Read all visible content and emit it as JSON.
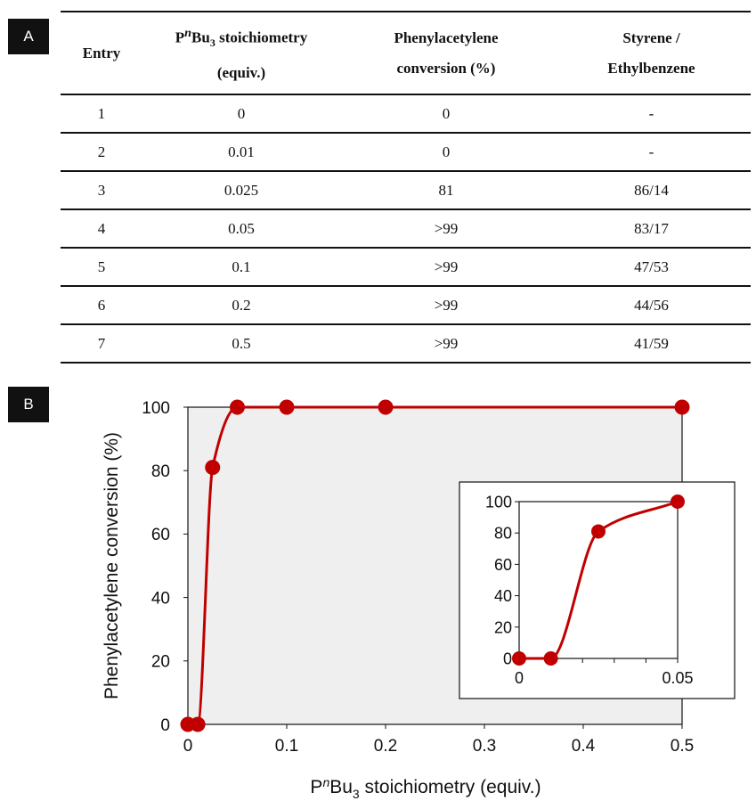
{
  "panels": {
    "a": "A",
    "b": "B"
  },
  "table": {
    "header": {
      "entry": "Entry",
      "stoich_pre": "P",
      "stoich_italic": "n",
      "stoich_mid": "Bu",
      "stoich_sub": "3",
      "stoich_post": " stoichiometry",
      "stoich_line2": "(equiv.)",
      "conv_line1": "Phenylacetylene",
      "conv_line2": "conversion (%)",
      "ratio_line1": "Styrene /",
      "ratio_line2": "Ethylbenzene"
    },
    "rows": [
      {
        "entry": "1",
        "stoich": "0",
        "conversion": "0",
        "ratio": "-"
      },
      {
        "entry": "2",
        "stoich": "0.01",
        "conversion": "0",
        "ratio": "-"
      },
      {
        "entry": "3",
        "stoich": "0.025",
        "conversion": "81",
        "ratio": "86/14"
      },
      {
        "entry": "4",
        "stoich": "0.05",
        "conversion": ">99",
        "ratio": "83/17"
      },
      {
        "entry": "5",
        "stoich": "0.1",
        "conversion": ">99",
        "ratio": "47/53"
      },
      {
        "entry": "6",
        "stoich": "0.2",
        "conversion": ">99",
        "ratio": "44/56"
      },
      {
        "entry": "7",
        "stoich": "0.5",
        "conversion": ">99",
        "ratio": "41/59"
      }
    ]
  },
  "chart_data": [
    {
      "type": "scatter",
      "x": [
        0,
        0.01,
        0.025,
        0.05,
        0.1,
        0.2,
        0.5
      ],
      "y": [
        0,
        0,
        81,
        100,
        100,
        100,
        100
      ],
      "xlim": [
        0,
        0.5
      ],
      "ylim": [
        0,
        100
      ],
      "xticks": [
        "0",
        "0.1",
        "0.2",
        "0.3",
        "0.4",
        "0.5"
      ],
      "yticks": [
        "0",
        "20",
        "40",
        "60",
        "80",
        "100"
      ],
      "xlabel": {
        "pre": "P",
        "italic": "n",
        "mid": "Bu",
        "sub": "3",
        "post": " stoichiometry (equiv.)"
      },
      "ylabel": "Phenylacetylene  conversion (%)",
      "grid": false,
      "marker_color": "#c00000",
      "line_color": "#c00000",
      "plot_background": "#efefef",
      "smooth_line": true
    },
    {
      "type": "scatter",
      "inset": true,
      "x": [
        0,
        0.01,
        0.025,
        0.05
      ],
      "y": [
        0,
        0,
        81,
        100
      ],
      "xlim": [
        0,
        0.05
      ],
      "ylim": [
        0,
        100
      ],
      "xticks": [
        "0",
        "0.05"
      ],
      "yticks": [
        "0",
        "20",
        "40",
        "60",
        "80",
        "100"
      ],
      "marker_color": "#c00000",
      "line_color": "#c00000",
      "plot_background": "#ffffff",
      "smooth_line": true
    }
  ]
}
